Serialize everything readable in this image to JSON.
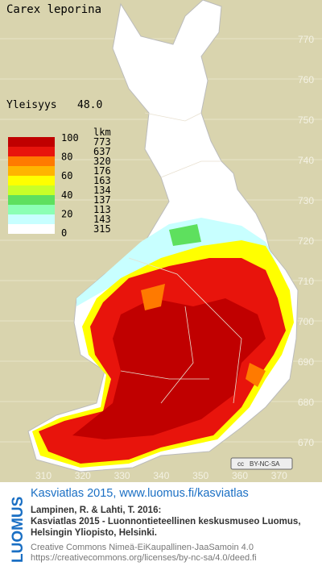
{
  "map": {
    "title": "Carex leporina",
    "index_label": "Yleisyys",
    "index_value": "48.0",
    "legend": {
      "count_header": "lkm",
      "scale_labels": [
        100,
        80,
        60,
        40,
        20,
        0
      ],
      "classes": [
        {
          "color": "#c00000",
          "count": 773
        },
        {
          "color": "#e8140c",
          "count": 637
        },
        {
          "color": "#ff7a00",
          "count": 320
        },
        {
          "color": "#ffb400",
          "count": 176
        },
        {
          "color": "#ffff00",
          "count": 163
        },
        {
          "color": "#c8ff28",
          "count": 134
        },
        {
          "color": "#5ee05e",
          "count": 137
        },
        {
          "color": "#8cffb4",
          "count": 113
        },
        {
          "color": "#c8ffff",
          "count": 143
        },
        {
          "color": "#ffffff",
          "count": 315
        }
      ]
    },
    "y_axis": [
      770,
      760,
      750,
      740,
      730,
      720,
      710,
      700,
      690,
      680,
      670
    ],
    "x_axis": [
      310,
      320,
      330,
      340,
      350,
      360,
      370
    ],
    "license_badge": "BY-NC-SA",
    "footer": {
      "brand": "LUOMUS",
      "heading": "Kasviatlas 2015, www.luomus.fi/kasviatlas",
      "citation": [
        "Lampinen, R. & Lahti, T. 2016:",
        "Kasviatlas 2015 - Luonnontieteellinen keskusmuseo Luomus,",
        "Helsingin Yliopisto, Helsinki."
      ],
      "license": [
        "Creative Commons Nimeä-EiKaupallinen-JaaSamoin 4.0",
        "https://creativecommons.org/licenses/by-nc-sa/4.0/deed.fi"
      ]
    }
  }
}
